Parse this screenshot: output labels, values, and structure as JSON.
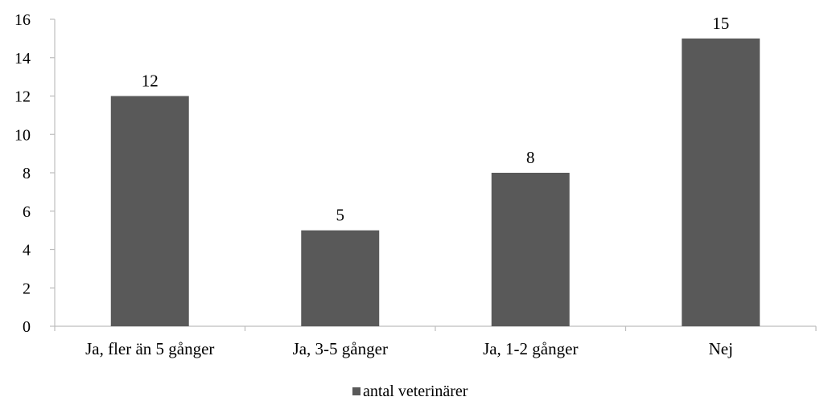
{
  "chart_data": {
    "type": "bar",
    "categories": [
      "Ja, fler än 5 gånger",
      "Ja, 3-5 gånger",
      "Ja, 1-2 gånger",
      "Nej"
    ],
    "series": [
      {
        "name": "antal veterinärer",
        "values": [
          12,
          5,
          8,
          15
        ],
        "color": "#595959"
      }
    ],
    "ylim": [
      0,
      16
    ],
    "yticks": [
      0,
      2,
      4,
      6,
      8,
      10,
      12,
      14,
      16
    ],
    "grid": false,
    "data_labels": true,
    "legend_position": "bottom",
    "axis_color": "#bdbdbd"
  }
}
